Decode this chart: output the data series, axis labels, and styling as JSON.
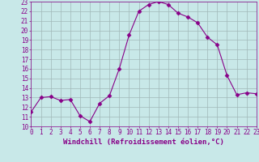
{
  "x": [
    0,
    1,
    2,
    3,
    4,
    5,
    6,
    7,
    8,
    9,
    10,
    11,
    12,
    13,
    14,
    15,
    16,
    17,
    18,
    19,
    20,
    21,
    22,
    23
  ],
  "y": [
    11.5,
    13.0,
    13.1,
    12.7,
    12.8,
    11.1,
    10.5,
    12.4,
    13.2,
    16.0,
    19.5,
    22.0,
    22.7,
    23.0,
    22.7,
    21.8,
    21.4,
    20.8,
    19.3,
    18.5,
    15.3,
    13.3,
    13.5,
    13.4
  ],
  "line_color": "#880088",
  "marker": "D",
  "marker_size": 2.5,
  "bg_color": "#c8e8e8",
  "grid_color": "#a0b8b8",
  "xlabel": "Windchill (Refroidissement éolien,°C)",
  "xlim": [
    0,
    23
  ],
  "ylim": [
    10,
    23
  ],
  "yticks": [
    10,
    11,
    12,
    13,
    14,
    15,
    16,
    17,
    18,
    19,
    20,
    21,
    22,
    23
  ],
  "xticks": [
    0,
    1,
    2,
    3,
    4,
    5,
    6,
    7,
    8,
    9,
    10,
    11,
    12,
    13,
    14,
    15,
    16,
    17,
    18,
    19,
    20,
    21,
    22,
    23
  ],
  "tick_color": "#880088",
  "label_color": "#880088",
  "tick_fontsize": 5.5,
  "xlabel_fontsize": 6.5
}
